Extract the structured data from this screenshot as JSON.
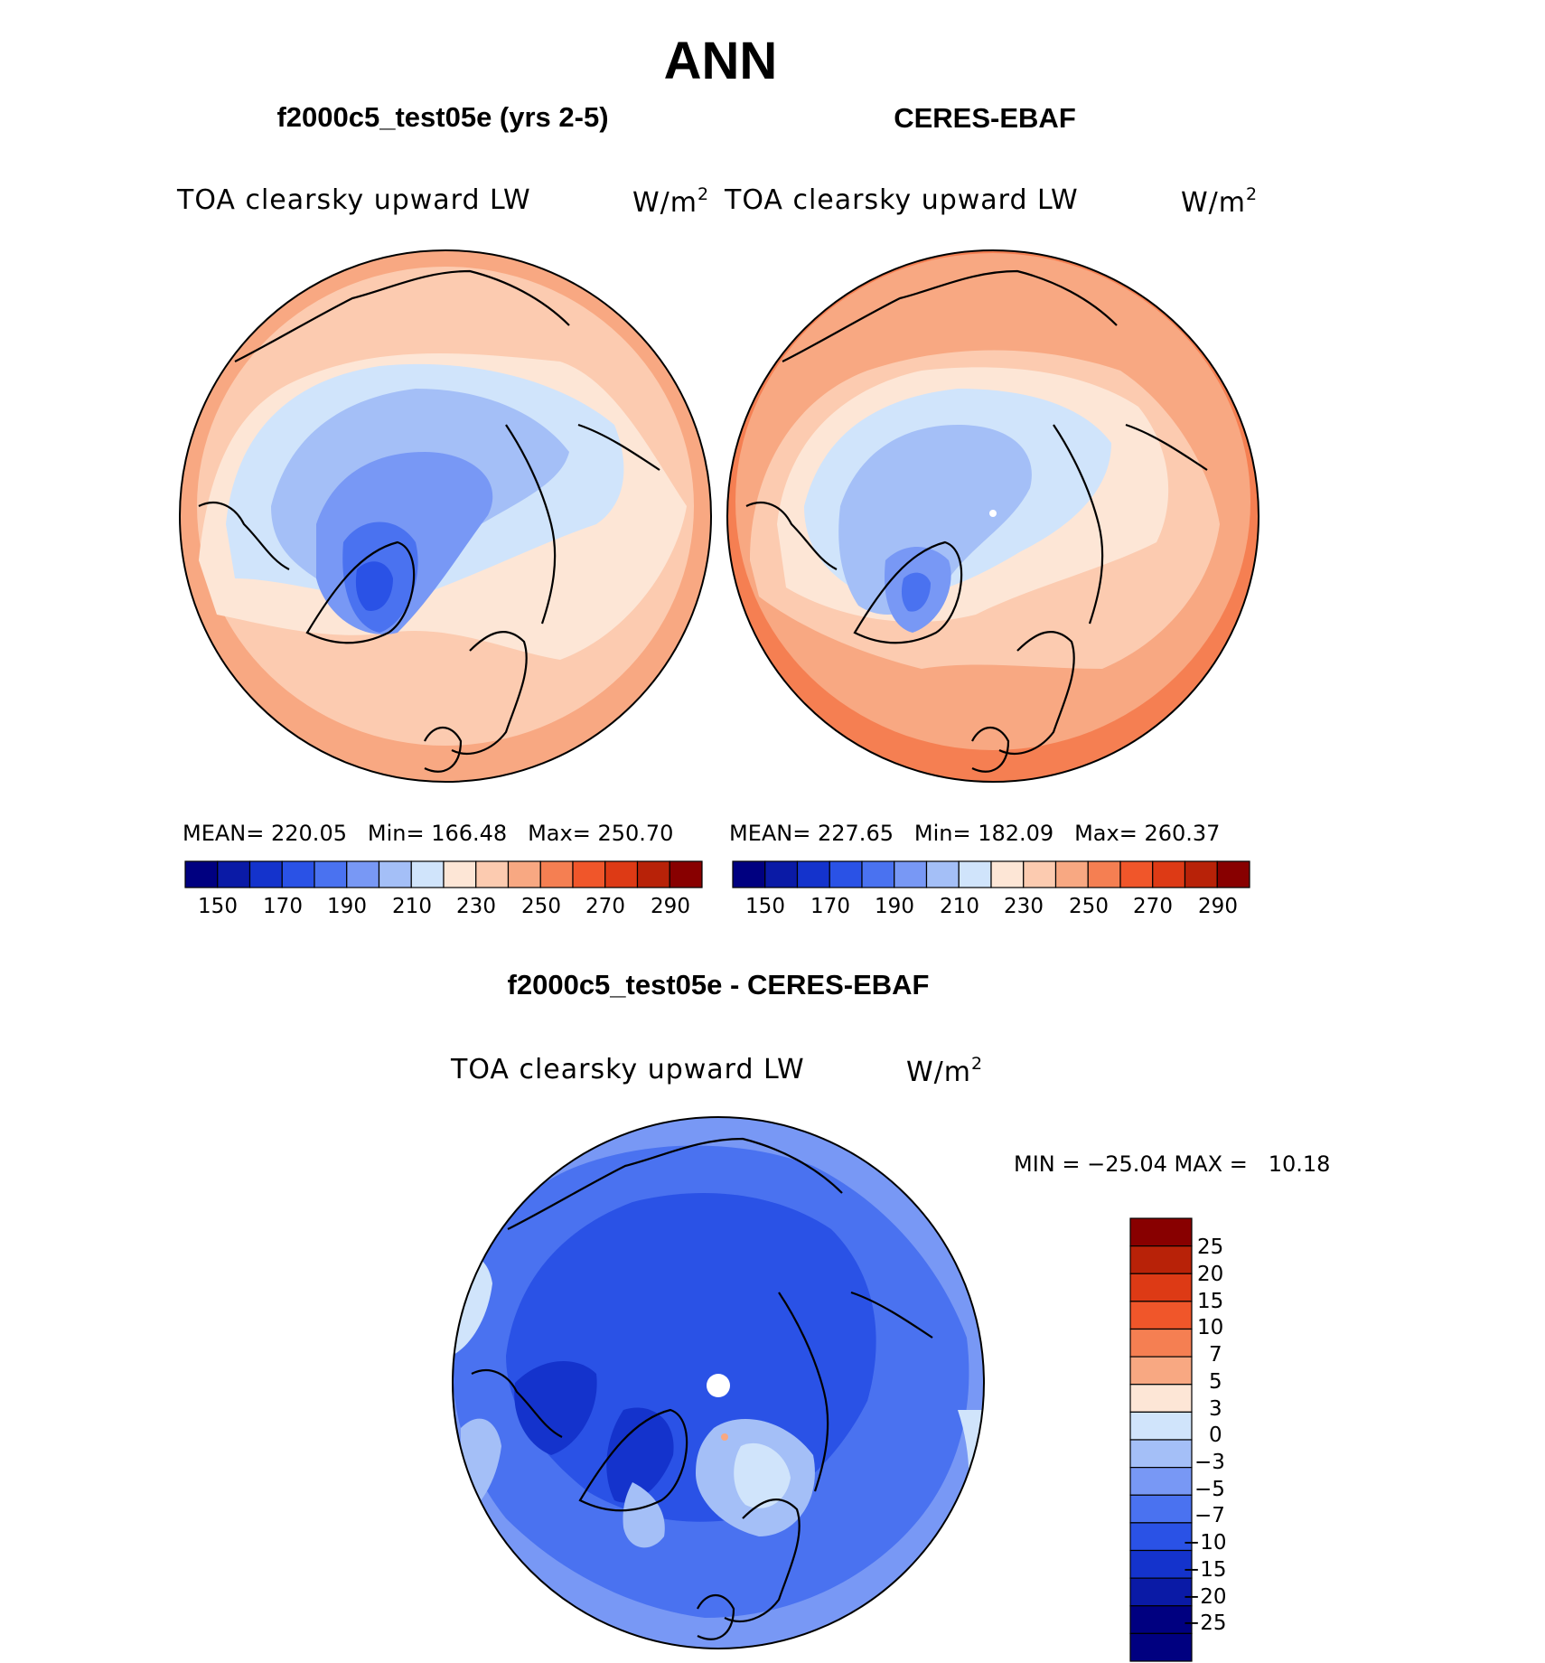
{
  "title": "ANN",
  "panels": [
    {
      "id": "test",
      "title": "f2000c5_test05e (yrs 2-5)",
      "variable": "TOA clearsky upward LW",
      "units": "W/m",
      "units_sup": "2",
      "stats": {
        "mean_label": "MEAN=",
        "mean": "220.05",
        "min_label": "Min=",
        "min": "166.48",
        "max_label": "Max=",
        "max": "250.70"
      },
      "colorbar_ticks": [
        "150",
        "170",
        "190",
        "210",
        "230",
        "250",
        "270",
        "290"
      ]
    },
    {
      "id": "obs",
      "title": "CERES-EBAF",
      "variable": "TOA clearsky upward LW",
      "units": "W/m",
      "units_sup": "2",
      "stats": {
        "mean_label": "MEAN=",
        "mean": "227.65",
        "min_label": "Min=",
        "min": "182.09",
        "max_label": "Max=",
        "max": "260.37"
      },
      "colorbar_ticks": [
        "150",
        "170",
        "190",
        "210",
        "230",
        "250",
        "270",
        "290"
      ]
    }
  ],
  "diff": {
    "title": "f2000c5_test05e - CERES-EBAF",
    "variable": "TOA clearsky upward LW",
    "units": "W/m",
    "units_sup": "2",
    "minmax": "MIN = −25.04 MAX =   10.18",
    "colorbar_ticks": [
      "25",
      "20",
      "15",
      "10",
      "7",
      "5",
      "3",
      "0",
      "−3",
      "−5",
      "−7",
      "−10",
      "−15",
      "−20",
      "−25"
    ]
  },
  "colors": {
    "main_scale": [
      "#000080",
      "#0a1aa6",
      "#1433cc",
      "#2a52e6",
      "#4a72f0",
      "#7898f5",
      "#a4bff7",
      "#d0e4fb",
      "#fde6d6",
      "#fccbb0",
      "#f8a882",
      "#f57f52",
      "#f0562a",
      "#dd3a15",
      "#b82208",
      "#880000"
    ],
    "diff_scale": [
      "#880000",
      "#b82208",
      "#dd3a15",
      "#f0562a",
      "#f57f52",
      "#f8a882",
      "#fde6d6",
      "#d0e4fb",
      "#a4bff7",
      "#7898f5",
      "#4a72f0",
      "#2a52e6",
      "#1433cc",
      "#0a1aa6",
      "#000080"
    ]
  }
}
